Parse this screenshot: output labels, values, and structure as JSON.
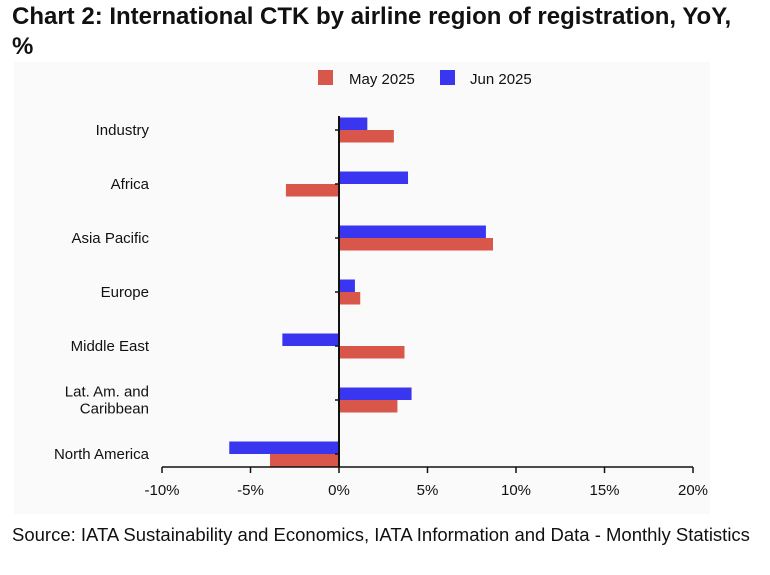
{
  "title": "Chart 2: International CTK by airline region of registration, YoY, %",
  "source": "Source: IATA Sustainability and Economics, IATA Information and Data - Monthly Statistics",
  "colors": {
    "may": "#d9574a",
    "jun": "#3a36f0",
    "axis": "#111111",
    "background": "#fafafa"
  },
  "chart_data": {
    "type": "bar",
    "orientation": "horizontal",
    "categories": [
      "Industry",
      "Africa",
      "Asia Pacific",
      "Europe",
      "Middle East",
      "Lat. Am. and\nCaribbean",
      "North America"
    ],
    "series": [
      {
        "name": "May 2025",
        "color": "#d9574a",
        "values": [
          3.1,
          -3.0,
          8.7,
          1.2,
          3.7,
          3.3,
          -3.9
        ]
      },
      {
        "name": "Jun 2025",
        "color": "#3a36f0",
        "values": [
          1.6,
          3.9,
          8.3,
          0.9,
          -3.2,
          4.1,
          -6.2
        ]
      }
    ],
    "xlim": [
      -10,
      20
    ],
    "xticks": [
      -10,
      -5,
      0,
      5,
      10,
      15,
      20
    ],
    "xtick_labels": [
      "-10%",
      "-5%",
      "0%",
      "5%",
      "10%",
      "15%",
      "20%"
    ],
    "legend": {
      "position": "top-center"
    },
    "grid": false
  }
}
